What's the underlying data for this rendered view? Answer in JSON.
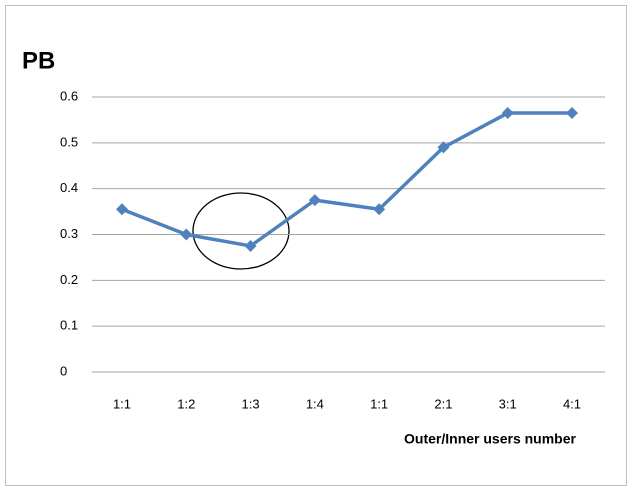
{
  "chart_data": {
    "type": "line",
    "y_label": "PB",
    "x_label": "Outer/Inner users number",
    "categories": [
      "1:1",
      "1:2",
      "1:3",
      "1:4",
      "1:1",
      "2:1",
      "3:1",
      "4:1"
    ],
    "series": [
      {
        "name": "PB",
        "color": "#4f81bd",
        "values": [
          0.355,
          0.3,
          0.275,
          0.375,
          0.355,
          0.49,
          0.565,
          0.565
        ]
      }
    ],
    "ylim": [
      0,
      0.6
    ],
    "yticks": [
      0,
      0.1,
      0.2,
      0.3,
      0.4,
      0.5,
      0.6
    ],
    "grid": true
  }
}
